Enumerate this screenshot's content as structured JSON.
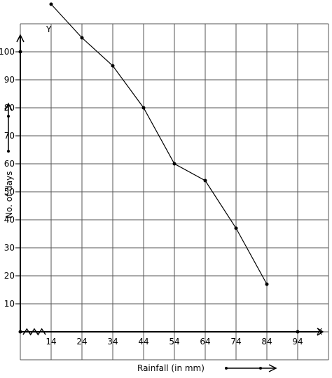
{
  "chart_data": {
    "type": "line",
    "xlabel": "Rainfall (in mm)",
    "ylabel": "No. of days",
    "x_axis_letter": "X",
    "y_axis_letter": "Y",
    "x_ticks": [
      "14",
      "24",
      "34",
      "44",
      "54",
      "64",
      "74",
      "84",
      "94"
    ],
    "y_ticks": [
      "10",
      "20",
      "30",
      "40",
      "50",
      "60",
      "70",
      "80",
      "90",
      "100"
    ],
    "x_tick_values": [
      14,
      24,
      34,
      44,
      54,
      64,
      74,
      84,
      94
    ],
    "y_tick_values": [
      10,
      20,
      30,
      40,
      50,
      60,
      70,
      80,
      90,
      100
    ],
    "x_range": [
      4,
      104
    ],
    "y_range": [
      -10,
      110
    ],
    "axis_break_x": true,
    "grid": true,
    "series": [
      {
        "x": [
          14,
          24,
          34,
          44,
          54,
          64,
          74,
          84
        ],
        "y": [
          117,
          105,
          95,
          80,
          60,
          54,
          37,
          17
        ]
      }
    ]
  }
}
